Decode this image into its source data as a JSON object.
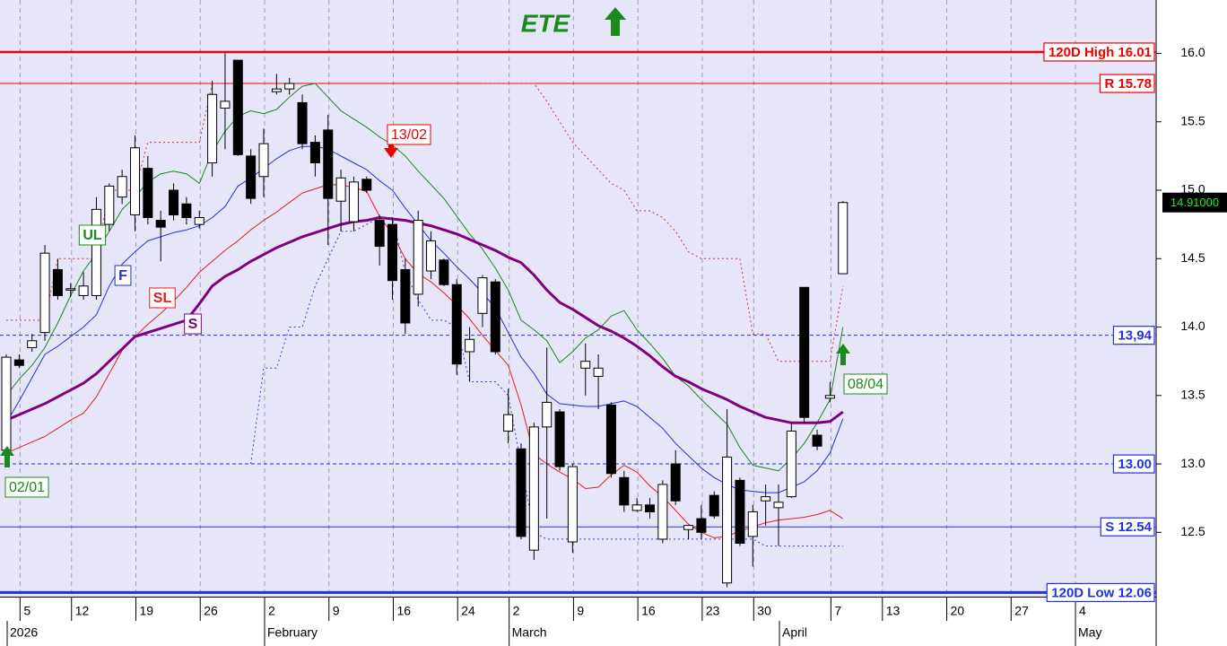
{
  "chart_data": {
    "type": "candlestick",
    "title": "ETE",
    "x": [
      "2026-01-02",
      "2026-01-05",
      "2026-01-07",
      "2026-01-08",
      "2026-01-09",
      "2026-01-12",
      "2026-01-13",
      "2026-01-14",
      "2026-01-15",
      "2026-01-16",
      "2026-01-19",
      "2026-01-20",
      "2026-01-21",
      "2026-01-22",
      "2026-01-23",
      "2026-01-26",
      "2026-01-27",
      "2026-01-28",
      "2026-01-29",
      "2026-01-30",
      "2026-02-02",
      "2026-02-03",
      "2026-02-04",
      "2026-02-05",
      "2026-02-06",
      "2026-02-09",
      "2026-02-10",
      "2026-02-11",
      "2026-02-12",
      "2026-02-13",
      "2026-02-16",
      "2026-02-17",
      "2026-02-18",
      "2026-02-19",
      "2026-02-20",
      "2026-02-24",
      "2026-02-25",
      "2026-02-26",
      "2026-02-27",
      "2026-03-02",
      "2026-03-03",
      "2026-03-04",
      "2026-03-05",
      "2026-03-06",
      "2026-03-09",
      "2026-03-10",
      "2026-03-11",
      "2026-03-12",
      "2026-03-13",
      "2026-03-16",
      "2026-03-17",
      "2026-03-18",
      "2026-03-19",
      "2026-03-20",
      "2026-03-23",
      "2026-03-24",
      "2026-03-26",
      "2026-03-27",
      "2026-03-30",
      "2026-03-31",
      "2026-04-01",
      "2026-04-02",
      "2026-04-03",
      "2026-04-06",
      "2026-04-07",
      "2026-04-08"
    ],
    "open": [
      13.1,
      13.76,
      13.85,
      13.96,
      14.42,
      14.27,
      14.23,
      14.23,
      14.75,
      14.95,
      14.82,
      15.16,
      14.78,
      15.0,
      14.9,
      14.75,
      15.2,
      15.6,
      15.95,
      15.25,
      15.1,
      15.72,
      15.74,
      15.64,
      15.35,
      15.44,
      14.92,
      14.77,
      15.08,
      14.78,
      14.75,
      14.42,
      14.24,
      14.41,
      14.49,
      14.31,
      13.82,
      14.1,
      14.33,
      13.24,
      13.11,
      12.37,
      13.27,
      13.38,
      12.43,
      13.7,
      13.64,
      13.43,
      12.9,
      12.66,
      12.7,
      12.45,
      13.0,
      12.52,
      12.6,
      12.77,
      12.13,
      12.88,
      12.47,
      12.73,
      12.68,
      12.76,
      14.29,
      13.21,
      13.48,
      14.39
    ],
    "high": [
      13.8,
      13.8,
      13.95,
      14.6,
      14.5,
      14.32,
      14.4,
      14.95,
      15.05,
      15.15,
      15.4,
      15.25,
      14.85,
      15.05,
      14.95,
      14.85,
      15.8,
      16.0,
      15.95,
      15.3,
      15.45,
      15.85,
      15.82,
      15.7,
      15.4,
      15.55,
      15.15,
      15.1,
      15.1,
      14.82,
      14.8,
      14.5,
      14.85,
      14.7,
      14.5,
      14.35,
      14.0,
      14.38,
      14.35,
      13.55,
      13.15,
      13.3,
      13.85,
      13.4,
      13.0,
      13.88,
      13.8,
      13.45,
      12.95,
      12.75,
      12.75,
      12.88,
      13.1,
      12.55,
      12.7,
      12.8,
      13.4,
      12.9,
      12.7,
      12.85,
      12.85,
      13.3,
      14.29,
      13.25,
      13.6,
      14.92
    ],
    "low": [
      13.08,
      13.7,
      13.82,
      13.9,
      14.2,
      14.22,
      14.2,
      14.2,
      14.7,
      14.9,
      14.7,
      14.75,
      14.48,
      14.78,
      14.75,
      14.72,
      15.1,
      15.3,
      15.25,
      14.9,
      14.95,
      15.7,
      15.7,
      15.3,
      15.1,
      14.6,
      14.7,
      14.7,
      14.98,
      14.45,
      14.2,
      13.95,
      14.15,
      14.35,
      14.3,
      13.65,
      13.6,
      14.0,
      13.8,
      13.15,
      12.45,
      12.3,
      12.6,
      12.95,
      12.35,
      13.5,
      13.4,
      12.9,
      12.65,
      12.65,
      12.6,
      12.42,
      12.7,
      12.45,
      12.45,
      12.6,
      12.1,
      12.4,
      12.25,
      12.55,
      12.4,
      12.75,
      13.3,
      13.1,
      13.45,
      14.39
    ],
    "close": [
      13.78,
      13.72,
      13.9,
      14.54,
      14.23,
      14.28,
      14.3,
      14.86,
      15.03,
      15.1,
      15.31,
      14.8,
      14.73,
      14.82,
      14.8,
      14.8,
      15.7,
      15.65,
      15.26,
      14.94,
      15.34,
      15.74,
      15.78,
      15.34,
      15.2,
      14.94,
      15.09,
      15.06,
      15.0,
      14.59,
      14.34,
      14.03,
      14.78,
      14.63,
      14.31,
      13.73,
      13.91,
      14.36,
      13.82,
      13.36,
      12.47,
      13.27,
      13.45,
      12.98,
      12.98,
      13.75,
      13.7,
      12.93,
      12.7,
      12.7,
      12.65,
      12.85,
      12.73,
      12.55,
      12.5,
      12.62,
      13.05,
      12.42,
      12.65,
      12.76,
      12.72,
      13.24,
      13.34,
      13.13,
      13.5,
      14.91
    ],
    "up_color": "#ffffff",
    "down_color": "#000000",
    "series": [
      {
        "name": "UL",
        "color": "#1a8a1a",
        "width": 1,
        "style": "solid",
        "values": [
          13.5,
          13.62,
          13.72,
          13.85,
          14.03,
          14.23,
          14.41,
          14.54,
          14.7,
          14.86,
          14.95,
          15.06,
          15.12,
          15.14,
          15.12,
          15.05,
          15.28,
          15.43,
          15.54,
          15.58,
          15.56,
          15.59,
          15.68,
          15.76,
          15.78,
          15.68,
          15.58,
          15.52,
          15.46,
          15.39,
          15.33,
          15.25,
          15.14,
          15.04,
          14.94,
          14.81,
          14.68,
          14.57,
          14.43,
          14.27,
          14.05,
          13.98,
          13.9,
          13.74,
          13.82,
          13.92,
          13.98,
          14.08,
          14.12,
          13.98,
          13.88,
          13.77,
          13.64,
          13.57,
          13.47,
          13.38,
          13.29,
          13.12,
          12.99,
          12.97,
          12.95,
          13.04,
          13.15,
          13.3,
          13.47,
          14.0
        ]
      },
      {
        "name": "F",
        "color": "#1f2fe0",
        "width": 1,
        "style": "solid",
        "values": [
          13.3,
          13.46,
          13.63,
          13.8,
          13.86,
          13.93,
          14.0,
          14.09,
          14.3,
          14.46,
          14.55,
          14.63,
          14.66,
          14.69,
          14.71,
          14.74,
          14.8,
          14.88,
          15.03,
          15.09,
          15.16,
          15.23,
          15.29,
          15.32,
          15.32,
          15.3,
          15.25,
          15.2,
          15.15,
          15.07,
          15.0,
          14.87,
          14.75,
          14.63,
          14.54,
          14.44,
          14.35,
          14.25,
          14.14,
          13.96,
          13.78,
          13.66,
          13.51,
          13.44,
          13.43,
          13.42,
          13.42,
          13.44,
          13.46,
          13.42,
          13.34,
          13.26,
          13.15,
          13.06,
          12.97,
          12.9,
          12.85,
          12.81,
          12.8,
          12.79,
          12.79,
          12.83,
          12.87,
          12.95,
          13.08,
          13.33
        ]
      },
      {
        "name": "SL",
        "color": "#e02020",
        "width": 1,
        "style": "solid",
        "values": [
          13.08,
          13.12,
          13.16,
          13.2,
          13.26,
          13.32,
          13.37,
          13.49,
          13.66,
          13.83,
          13.93,
          14.02,
          14.1,
          14.19,
          14.29,
          14.4,
          14.48,
          14.56,
          14.63,
          14.71,
          14.78,
          14.84,
          14.91,
          14.98,
          15.01,
          15.04,
          15.04,
          15.02,
          14.99,
          14.81,
          14.68,
          14.5,
          14.39,
          14.33,
          14.25,
          14.16,
          14.06,
          13.94,
          13.83,
          13.72,
          13.43,
          13.07,
          13.0,
          12.94,
          12.89,
          12.82,
          12.83,
          12.92,
          12.99,
          12.94,
          12.84,
          12.76,
          12.66,
          12.56,
          12.5,
          12.46,
          12.47,
          12.51,
          12.54,
          12.57,
          12.59,
          12.6,
          12.61,
          12.63,
          12.66,
          12.6
        ]
      },
      {
        "name": "S",
        "color": "#800080",
        "width": 3,
        "style": "solid",
        "values": [
          13.32,
          13.36,
          13.4,
          13.44,
          13.49,
          13.54,
          13.59,
          13.66,
          13.75,
          13.84,
          13.93,
          13.96,
          13.99,
          14.02,
          14.05,
          14.17,
          14.3,
          14.37,
          14.42,
          14.48,
          14.53,
          14.58,
          14.62,
          14.66,
          14.69,
          14.72,
          14.75,
          14.77,
          14.78,
          14.8,
          14.79,
          14.78,
          14.76,
          14.74,
          14.71,
          14.68,
          14.64,
          14.6,
          14.56,
          14.51,
          14.47,
          14.38,
          14.27,
          14.18,
          14.13,
          14.07,
          14.01,
          13.97,
          13.92,
          13.86,
          13.79,
          13.71,
          13.64,
          13.6,
          13.55,
          13.51,
          13.47,
          13.42,
          13.38,
          13.34,
          13.32,
          13.3,
          13.3,
          13.3,
          13.31,
          13.38
        ]
      },
      {
        "color": "#e03030",
        "width": 1,
        "style": "dotted",
        "values": [
          14.05,
          14.05,
          14.05,
          14.05,
          14.5,
          14.5,
          14.5,
          14.5,
          15.0,
          15.0,
          15.0,
          15.35,
          15.35,
          15.35,
          15.35,
          15.35,
          15.78,
          15.78,
          null,
          null,
          null,
          null,
          null,
          null,
          null,
          null,
          null,
          null,
          null,
          null,
          null,
          null,
          null,
          null,
          null,
          null,
          null,
          15.78,
          15.78,
          15.78,
          15.78,
          15.78,
          15.65,
          15.5,
          15.35,
          15.25,
          15.15,
          15.05,
          15.0,
          14.85,
          14.85,
          14.8,
          14.7,
          14.55,
          14.5,
          14.5,
          14.5,
          14.5,
          13.95,
          13.95,
          13.75,
          13.75,
          13.75,
          13.75,
          13.75,
          14.3
        ]
      },
      {
        "color": "#3040e0",
        "width": 1,
        "style": "dotted",
        "values": [
          null,
          null,
          null,
          null,
          null,
          null,
          null,
          null,
          null,
          null,
          null,
          null,
          null,
          null,
          null,
          null,
          null,
          null,
          null,
          13.0,
          13.7,
          13.7,
          14.0,
          14.0,
          14.3,
          14.5,
          14.7,
          14.7,
          14.75,
          14.8,
          14.8,
          14.4,
          14.2,
          14.05,
          14.05,
          14.0,
          13.6,
          13.6,
          13.6,
          13.5,
          13.0,
          12.5,
          12.45,
          12.45,
          12.45,
          12.45,
          12.45,
          12.45,
          12.45,
          12.45,
          12.45,
          12.45,
          12.45,
          12.45,
          12.45,
          12.45,
          12.45,
          12.45,
          12.45,
          12.4,
          12.4,
          12.4,
          12.4,
          12.4,
          12.4,
          12.4
        ]
      }
    ],
    "levels": [
      {
        "label": "120D High 16.01",
        "value": 16.01,
        "color": "#ee0000",
        "style": "solid",
        "width": 2.5
      },
      {
        "label": "R 15.78",
        "value": 15.78,
        "color": "#ee0000",
        "style": "solid",
        "width": 1
      },
      {
        "label": "13,94",
        "value": 13.94,
        "color": "#2233dd",
        "style": "dashed",
        "width": 1
      },
      {
        "label": "13.00",
        "value": 13.0,
        "color": "#2233dd",
        "style": "dashed",
        "width": 1
      },
      {
        "label": "S 12.54",
        "value": 12.54,
        "color": "#2233dd",
        "style": "solid",
        "width": 1
      },
      {
        "label": "120D Low 12.06",
        "value": 12.06,
        "color": "#2233dd",
        "style": "solid",
        "width": 3
      }
    ],
    "annotations": [
      {
        "text": "02/01",
        "x": "2026-01-02",
        "direction": "up",
        "color": "#1a8a1a"
      },
      {
        "text": "13/02",
        "x": "2026-02-13",
        "direction": "down",
        "color": "#ee0000"
      },
      {
        "text": "08/04",
        "x": "2026-04-08",
        "direction": "up",
        "color": "#1a8a1a"
      }
    ],
    "last_price": {
      "value": 14.91,
      "label": "14.91000"
    },
    "ylim": [
      12.03,
      16.39
    ],
    "yticks": [
      {
        "value": 16,
        "label": "16.0"
      },
      15.5,
      {
        "value": 15,
        "label": "15.0"
      },
      14.5,
      {
        "value": 14,
        "label": "14.0"
      },
      13.5,
      {
        "value": 13,
        "label": "13.0"
      },
      12.5
    ],
    "xticks": [
      {
        "value": "2026-01-05",
        "label": "5"
      },
      {
        "value": "2026-01-12",
        "label": "12"
      },
      {
        "value": "2026-01-19",
        "label": "19"
      },
      {
        "value": "2026-01-26",
        "label": "26"
      },
      {
        "value": "2026-02-02",
        "label": "2"
      },
      {
        "value": "2026-02-09",
        "label": "9"
      },
      {
        "value": "2026-02-16",
        "label": "16"
      },
      {
        "value": "2026-02-24",
        "label": "24"
      },
      {
        "value": "2026-03-02",
        "label": "2"
      },
      {
        "value": "2026-03-09",
        "label": "9"
      },
      {
        "value": "2026-03-16",
        "label": "16"
      },
      {
        "value": "2026-03-23",
        "label": "23"
      },
      {
        "value": "2026-03-30",
        "label": "30"
      },
      {
        "value": "2026-04-07",
        "label": "7"
      },
      {
        "value": "2026-04-13",
        "label": "13"
      },
      {
        "value": "2026-04-20",
        "label": "20"
      },
      {
        "value": "2026-04-27",
        "label": "27"
      },
      {
        "value": "2026-05-04",
        "label": "4"
      }
    ],
    "xmonths": [
      {
        "value": "2026-01-02",
        "label": "2026"
      },
      {
        "value": "2026-02-02",
        "label": "February"
      },
      {
        "value": "2026-03-02",
        "label": "March"
      },
      {
        "value": "2026-04-01",
        "label": "April"
      },
      {
        "value": "2026-05-04",
        "label": "May"
      }
    ],
    "grid": true
  }
}
